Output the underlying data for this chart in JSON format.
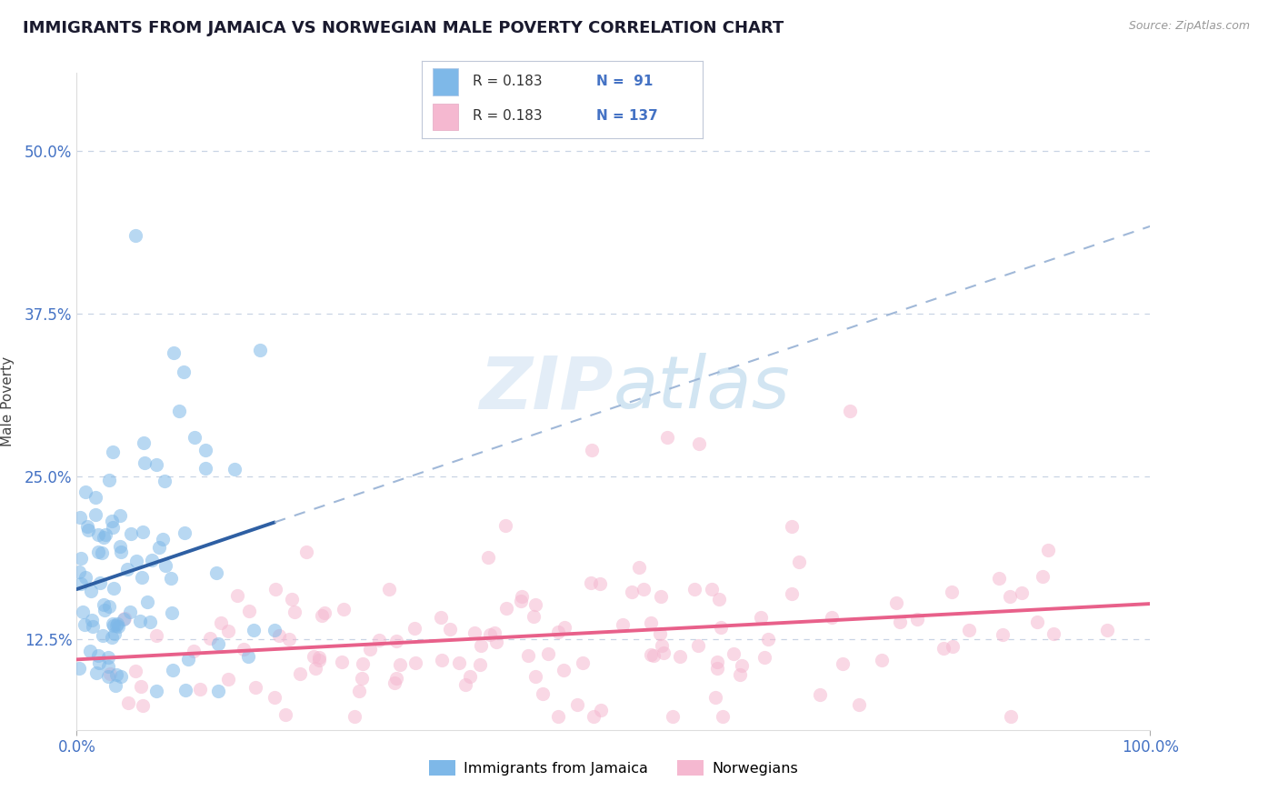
{
  "title": "IMMIGRANTS FROM JAMAICA VS NORWEGIAN MALE POVERTY CORRELATION CHART",
  "source_text": "Source: ZipAtlas.com",
  "ylabel": "Male Poverty",
  "xmin": 0.0,
  "xmax": 1.0,
  "ymin": 0.055,
  "ymax": 0.56,
  "yticks": [
    0.125,
    0.25,
    0.375,
    0.5
  ],
  "ytick_labels": [
    "12.5%",
    "25.0%",
    "37.5%",
    "50.0%"
  ],
  "xtick_labels": [
    "0.0%",
    "100.0%"
  ],
  "xtick_positions": [
    0.0,
    1.0
  ],
  "legend_label1": "Immigrants from Jamaica",
  "legend_label2": "Norwegians",
  "blue_scatter_color": "#7eb8e8",
  "pink_scatter_color": "#f5b8d0",
  "trend_blue": "#2e5fa3",
  "trend_pink": "#e8608a",
  "trend_blue_dash": "#a0b8d8",
  "background_color": "#ffffff",
  "grid_color": "#c8d4e4",
  "title_color": "#1a1a2e",
  "title_fontsize": 13,
  "axis_label_color": "#444444",
  "tick_label_color": "#4472c4",
  "legend_text_color": "#333333",
  "scatter_alpha": 0.55,
  "scatter_size": 120,
  "watermark_color": "#c8ddf0",
  "watermark_alpha": 0.5
}
